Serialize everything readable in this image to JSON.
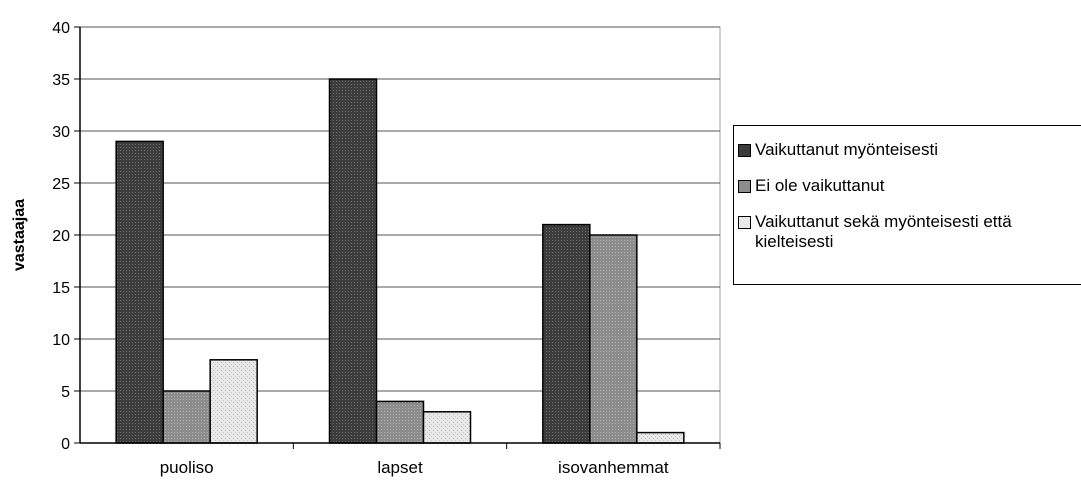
{
  "chart_data": {
    "type": "bar",
    "categories": [
      "puoliso",
      "lapset",
      "isovanhemmat"
    ],
    "series": [
      {
        "name": "Vaikuttanut myönteisesti",
        "values": [
          29,
          35,
          21
        ],
        "color": "#4a4a4a"
      },
      {
        "name": "Ei ole vaikuttanut",
        "values": [
          5,
          4,
          20
        ],
        "color": "#9a9a9a"
      },
      {
        "name": "Vaikuttanut sekä myönteisesti että\nkielteisesti",
        "values": [
          8,
          3,
          1
        ],
        "color": "#dcdcdc"
      }
    ],
    "ylabel": "vastaajaa",
    "ylim": [
      0,
      40
    ],
    "yticks": [
      0,
      5,
      10,
      15,
      20,
      25,
      30,
      35,
      40
    ],
    "grid": true,
    "legend_position": "right"
  }
}
